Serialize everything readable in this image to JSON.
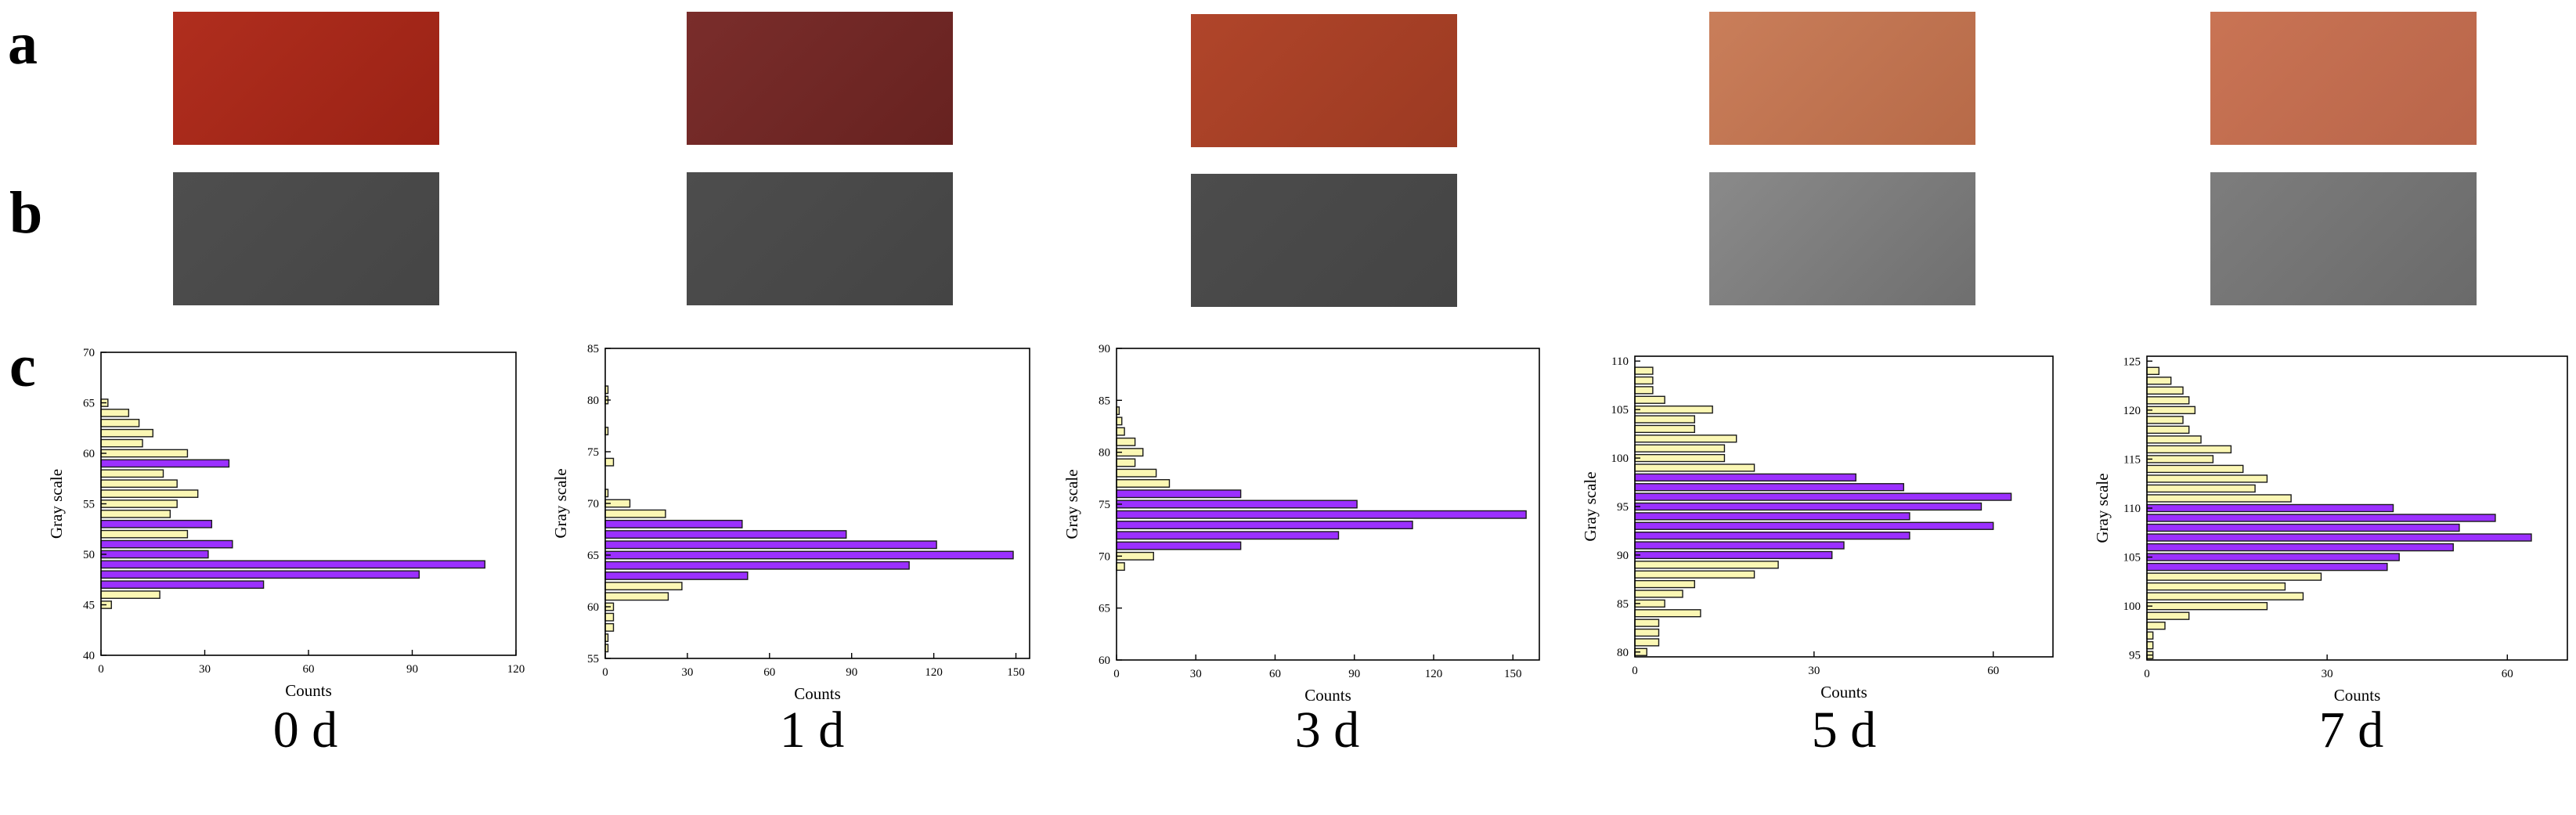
{
  "panel_labels": {
    "a": "a",
    "b": "b",
    "c": "c"
  },
  "day_labels": [
    "0 d",
    "1 d",
    "3 d",
    "5 d",
    "7 d"
  ],
  "colors": {
    "highlight_bar": "#9b30ff",
    "normal_bar": "#fbf7b4",
    "bar_stroke": "#1a1a1a"
  },
  "sample_colors": [
    [
      "#b02e1e",
      "#9a2215"
    ],
    [
      "#7a2d2b",
      "#672220"
    ],
    [
      "#b0452a",
      "#9c3a22"
    ],
    [
      "#c97e5a",
      "#b76a48"
    ],
    [
      "#c97454",
      "#b9654a"
    ]
  ],
  "gray_colors": [
    [
      "#4e4e4e",
      "#454545"
    ],
    [
      "#4d4d4d",
      "#444444"
    ],
    [
      "#4c4c4c",
      "#444444"
    ],
    [
      "#8a8a8a",
      "#6f6f6f"
    ],
    [
      "#7d7d7d",
      "#6a6a6a"
    ]
  ],
  "chart_data": [
    {
      "type": "bar",
      "orientation": "horizontal",
      "xlabel": "Counts",
      "ylabel": "Gray scale",
      "xlim": [
        0,
        120
      ],
      "xticks": [
        "0",
        "30",
        "60",
        "90",
        "120"
      ],
      "ylim": [
        40,
        70
      ],
      "yticks": [
        "40",
        "45",
        "50",
        "55",
        "60",
        "65",
        "70"
      ],
      "bins": [
        {
          "y": 45,
          "count": 3,
          "hl": false
        },
        {
          "y": 46,
          "count": 17,
          "hl": false
        },
        {
          "y": 47,
          "count": 47,
          "hl": true
        },
        {
          "y": 48,
          "count": 92,
          "hl": true
        },
        {
          "y": 49,
          "count": 111,
          "hl": true
        },
        {
          "y": 50,
          "count": 31,
          "hl": true
        },
        {
          "y": 51,
          "count": 38,
          "hl": true
        },
        {
          "y": 52,
          "count": 25,
          "hl": false
        },
        {
          "y": 53,
          "count": 32,
          "hl": true
        },
        {
          "y": 54,
          "count": 20,
          "hl": false
        },
        {
          "y": 55,
          "count": 22,
          "hl": false
        },
        {
          "y": 56,
          "count": 28,
          "hl": false
        },
        {
          "y": 57,
          "count": 22,
          "hl": false
        },
        {
          "y": 58,
          "count": 18,
          "hl": false
        },
        {
          "y": 59,
          "count": 37,
          "hl": true
        },
        {
          "y": 60,
          "count": 25,
          "hl": false
        },
        {
          "y": 61,
          "count": 12,
          "hl": false
        },
        {
          "y": 62,
          "count": 15,
          "hl": false
        },
        {
          "y": 63,
          "count": 11,
          "hl": false
        },
        {
          "y": 64,
          "count": 8,
          "hl": false
        },
        {
          "y": 65,
          "count": 2,
          "hl": false
        }
      ]
    },
    {
      "type": "bar",
      "orientation": "horizontal",
      "xlabel": "Counts",
      "ylabel": "Gray scale",
      "xlim": [
        0,
        155
      ],
      "xticks": [
        "0",
        "30",
        "60",
        "90",
        "120",
        "150"
      ],
      "ylim": [
        55,
        85
      ],
      "yticks": [
        "55",
        "60",
        "65",
        "70",
        "75",
        "80",
        "85"
      ],
      "bins": [
        {
          "y": 56,
          "count": 1,
          "hl": false
        },
        {
          "y": 57,
          "count": 1,
          "hl": false
        },
        {
          "y": 58,
          "count": 3,
          "hl": false
        },
        {
          "y": 59,
          "count": 3,
          "hl": false
        },
        {
          "y": 60,
          "count": 3,
          "hl": false
        },
        {
          "y": 61,
          "count": 23,
          "hl": false
        },
        {
          "y": 62,
          "count": 28,
          "hl": false
        },
        {
          "y": 63,
          "count": 52,
          "hl": true
        },
        {
          "y": 64,
          "count": 111,
          "hl": true
        },
        {
          "y": 65,
          "count": 149,
          "hl": true
        },
        {
          "y": 66,
          "count": 121,
          "hl": true
        },
        {
          "y": 67,
          "count": 88,
          "hl": true
        },
        {
          "y": 68,
          "count": 50,
          "hl": true
        },
        {
          "y": 69,
          "count": 22,
          "hl": false
        },
        {
          "y": 70,
          "count": 9,
          "hl": false
        },
        {
          "y": 71,
          "count": 1,
          "hl": false
        },
        {
          "y": 74,
          "count": 3,
          "hl": false
        },
        {
          "y": 77,
          "count": 1,
          "hl": false
        },
        {
          "y": 80,
          "count": 1,
          "hl": false
        },
        {
          "y": 81,
          "count": 1,
          "hl": false
        }
      ]
    },
    {
      "type": "bar",
      "orientation": "horizontal",
      "xlabel": "Counts",
      "ylabel": "Gray scale",
      "xlim": [
        0,
        160
      ],
      "xticks": [
        "0",
        "30",
        "60",
        "90",
        "120",
        "150"
      ],
      "ylim": [
        60,
        90
      ],
      "yticks": [
        "60",
        "65",
        "70",
        "75",
        "80",
        "85",
        "90"
      ],
      "bins": [
        {
          "y": 69,
          "count": 3,
          "hl": false
        },
        {
          "y": 70,
          "count": 14,
          "hl": false
        },
        {
          "y": 71,
          "count": 47,
          "hl": true
        },
        {
          "y": 72,
          "count": 84,
          "hl": true
        },
        {
          "y": 73,
          "count": 112,
          "hl": true
        },
        {
          "y": 74,
          "count": 155,
          "hl": true
        },
        {
          "y": 75,
          "count": 91,
          "hl": true
        },
        {
          "y": 76,
          "count": 47,
          "hl": true
        },
        {
          "y": 77,
          "count": 20,
          "hl": false
        },
        {
          "y": 78,
          "count": 15,
          "hl": false
        },
        {
          "y": 79,
          "count": 7,
          "hl": false
        },
        {
          "y": 80,
          "count": 10,
          "hl": false
        },
        {
          "y": 81,
          "count": 7,
          "hl": false
        },
        {
          "y": 82,
          "count": 3,
          "hl": false
        },
        {
          "y": 83,
          "count": 2,
          "hl": false
        },
        {
          "y": 84,
          "count": 1,
          "hl": false
        }
      ]
    },
    {
      "type": "bar",
      "orientation": "horizontal",
      "xlabel": "Counts",
      "ylabel": "Gray scale",
      "xlim": [
        0,
        70
      ],
      "xticks": [
        "0",
        "30",
        "60"
      ],
      "ylim": [
        79.5,
        110.5
      ],
      "yticks": [
        "80",
        "85",
        "90",
        "95",
        "100",
        "105",
        "110"
      ],
      "bins": [
        {
          "y": 80,
          "count": 2,
          "hl": false
        },
        {
          "y": 81,
          "count": 4,
          "hl": false
        },
        {
          "y": 82,
          "count": 4,
          "hl": false
        },
        {
          "y": 83,
          "count": 4,
          "hl": false
        },
        {
          "y": 84,
          "count": 11,
          "hl": false
        },
        {
          "y": 85,
          "count": 5,
          "hl": false
        },
        {
          "y": 86,
          "count": 8,
          "hl": false
        },
        {
          "y": 87,
          "count": 10,
          "hl": false
        },
        {
          "y": 88,
          "count": 20,
          "hl": false
        },
        {
          "y": 89,
          "count": 24,
          "hl": false
        },
        {
          "y": 90,
          "count": 33,
          "hl": true
        },
        {
          "y": 91,
          "count": 35,
          "hl": true
        },
        {
          "y": 92,
          "count": 46,
          "hl": true
        },
        {
          "y": 93,
          "count": 60,
          "hl": true
        },
        {
          "y": 94,
          "count": 46,
          "hl": true
        },
        {
          "y": 95,
          "count": 58,
          "hl": true
        },
        {
          "y": 96,
          "count": 63,
          "hl": true
        },
        {
          "y": 97,
          "count": 45,
          "hl": true
        },
        {
          "y": 98,
          "count": 37,
          "hl": true
        },
        {
          "y": 99,
          "count": 20,
          "hl": false
        },
        {
          "y": 100,
          "count": 15,
          "hl": false
        },
        {
          "y": 101,
          "count": 15,
          "hl": false
        },
        {
          "y": 102,
          "count": 17,
          "hl": false
        },
        {
          "y": 103,
          "count": 10,
          "hl": false
        },
        {
          "y": 104,
          "count": 10,
          "hl": false
        },
        {
          "y": 105,
          "count": 13,
          "hl": false
        },
        {
          "y": 106,
          "count": 5,
          "hl": false
        },
        {
          "y": 107,
          "count": 3,
          "hl": false
        },
        {
          "y": 108,
          "count": 3,
          "hl": false
        },
        {
          "y": 109,
          "count": 3,
          "hl": false
        }
      ]
    },
    {
      "type": "bar",
      "orientation": "horizontal",
      "xlabel": "Counts",
      "ylabel": "Gray scale",
      "xlim": [
        0,
        70
      ],
      "xticks": [
        "0",
        "30",
        "60"
      ],
      "ylim": [
        94.5,
        125.5
      ],
      "yticks": [
        "95",
        "100",
        "105",
        "110",
        "115",
        "120",
        "125"
      ],
      "bins": [
        {
          "y": 95,
          "count": 1,
          "hl": false
        },
        {
          "y": 96,
          "count": 1,
          "hl": false
        },
        {
          "y": 97,
          "count": 1,
          "hl": false
        },
        {
          "y": 98,
          "count": 3,
          "hl": false
        },
        {
          "y": 99,
          "count": 7,
          "hl": false
        },
        {
          "y": 100,
          "count": 20,
          "hl": false
        },
        {
          "y": 101,
          "count": 26,
          "hl": false
        },
        {
          "y": 102,
          "count": 23,
          "hl": false
        },
        {
          "y": 103,
          "count": 29,
          "hl": false
        },
        {
          "y": 104,
          "count": 40,
          "hl": true
        },
        {
          "y": 105,
          "count": 42,
          "hl": true
        },
        {
          "y": 106,
          "count": 51,
          "hl": true
        },
        {
          "y": 107,
          "count": 64,
          "hl": true
        },
        {
          "y": 108,
          "count": 52,
          "hl": true
        },
        {
          "y": 109,
          "count": 58,
          "hl": true
        },
        {
          "y": 110,
          "count": 41,
          "hl": true
        },
        {
          "y": 111,
          "count": 24,
          "hl": false
        },
        {
          "y": 112,
          "count": 18,
          "hl": false
        },
        {
          "y": 113,
          "count": 20,
          "hl": false
        },
        {
          "y": 114,
          "count": 16,
          "hl": false
        },
        {
          "y": 115,
          "count": 11,
          "hl": false
        },
        {
          "y": 116,
          "count": 14,
          "hl": false
        },
        {
          "y": 117,
          "count": 9,
          "hl": false
        },
        {
          "y": 118,
          "count": 7,
          "hl": false
        },
        {
          "y": 119,
          "count": 6,
          "hl": false
        },
        {
          "y": 120,
          "count": 8,
          "hl": false
        },
        {
          "y": 121,
          "count": 7,
          "hl": false
        },
        {
          "y": 122,
          "count": 6,
          "hl": false
        },
        {
          "y": 123,
          "count": 4,
          "hl": false
        },
        {
          "y": 124,
          "count": 2,
          "hl": false
        }
      ]
    }
  ]
}
